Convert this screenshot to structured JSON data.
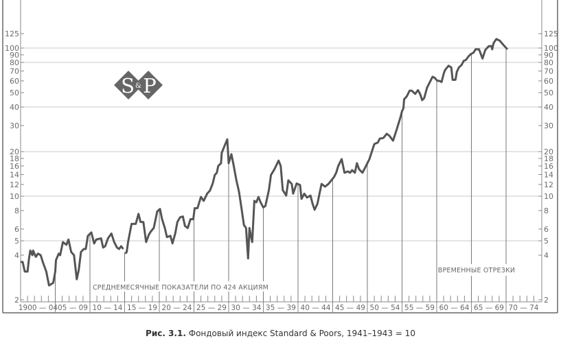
{
  "chart_data": {
    "type": "line",
    "title": "",
    "y_scale": "log",
    "ylim": [
      2,
      150
    ],
    "xlim": [
      1900,
      1975
    ],
    "y_ticks": [
      2,
      4,
      5,
      6,
      8,
      10,
      12,
      14,
      16,
      18,
      20,
      30,
      40,
      50,
      60,
      70,
      80,
      90,
      100,
      125
    ],
    "y_tick_labels": [
      "2",
      "4",
      "5",
      "6",
      "8",
      "10",
      "12",
      "14",
      "16",
      "18",
      "20",
      "30",
      "40",
      "50",
      "60",
      "70",
      "80",
      "90",
      "100",
      "125"
    ],
    "gridlines": [
      5,
      10,
      20,
      40,
      80,
      100
    ],
    "x_periods": [
      "1900 — 04",
      "05 — 09",
      "10 — 14",
      "15 — 19",
      "20 — 24",
      "25 — 29",
      "30 — 34",
      "35 — 39",
      "40 — 44",
      "45 — 49",
      "50 — 54",
      "55 — 59",
      "60 — 64",
      "65 — 69",
      "70 — 74"
    ],
    "annotations": [
      "СРЕДНЕМЕСЯЧНЫЕ ПОКАЗАТЕЛИ ПО 424 АКЦИЯМ",
      "ВРЕМЕННЫЕ ОТРЕЗКИ"
    ],
    "line_color": "#555555",
    "series": [
      {
        "points": [
          [
            1900.0,
            3.6
          ],
          [
            1900.3,
            3.6
          ],
          [
            1900.6,
            3.1
          ],
          [
            1901.0,
            3.1
          ],
          [
            1901.2,
            3.75
          ],
          [
            1901.4,
            4.3
          ],
          [
            1901.7,
            4.0
          ],
          [
            1901.8,
            4.3
          ],
          [
            1902.2,
            3.9
          ],
          [
            1902.5,
            4.1
          ],
          [
            1902.9,
            4.0
          ],
          [
            1903.2,
            3.6
          ],
          [
            1903.7,
            3.1
          ],
          [
            1904.1,
            2.5
          ],
          [
            1904.7,
            2.6
          ],
          [
            1905.0,
            3.1
          ],
          [
            1905.1,
            3.7
          ],
          [
            1905.5,
            4.1
          ],
          [
            1905.7,
            4.0
          ],
          [
            1906.1,
            4.9
          ],
          [
            1906.6,
            4.7
          ],
          [
            1906.9,
            5.1
          ],
          [
            1907.3,
            4.2
          ],
          [
            1907.7,
            4.0
          ],
          [
            1908.1,
            2.75
          ],
          [
            1908.4,
            3.2
          ],
          [
            1908.7,
            4.2
          ],
          [
            1909.1,
            4.4
          ],
          [
            1909.4,
            4.4
          ],
          [
            1909.7,
            5.4
          ],
          [
            1910.2,
            5.7
          ],
          [
            1910.6,
            4.8
          ],
          [
            1910.9,
            5.1
          ],
          [
            1911.6,
            5.2
          ],
          [
            1911.9,
            4.5
          ],
          [
            1912.2,
            4.6
          ],
          [
            1912.6,
            5.2
          ],
          [
            1913.1,
            5.6
          ],
          [
            1913.5,
            4.9
          ],
          [
            1913.9,
            4.5
          ],
          [
            1914.2,
            4.4
          ],
          [
            1914.5,
            4.6
          ],
          [
            1914.8,
            4.4
          ],
          null,
          [
            1915.1,
            4.1
          ],
          [
            1915.3,
            4.2
          ],
          [
            1915.5,
            4.9
          ],
          [
            1916.0,
            6.5
          ],
          [
            1916.6,
            6.5
          ],
          [
            1917.0,
            7.6
          ],
          [
            1917.3,
            6.7
          ],
          [
            1917.7,
            6.7
          ],
          [
            1918.1,
            4.9
          ],
          [
            1918.5,
            5.5
          ],
          [
            1918.8,
            5.8
          ],
          [
            1919.2,
            6.1
          ],
          [
            1919.7,
            7.9
          ],
          [
            1920.1,
            8.2
          ],
          [
            1920.4,
            7.0
          ],
          [
            1920.8,
            6.1
          ],
          [
            1921.1,
            5.3
          ],
          [
            1921.6,
            5.4
          ],
          [
            1921.9,
            4.8
          ],
          [
            1922.3,
            5.6
          ],
          [
            1922.6,
            6.7
          ],
          [
            1923.0,
            7.2
          ],
          [
            1923.4,
            7.3
          ],
          [
            1923.7,
            6.3
          ],
          [
            1924.1,
            6.1
          ],
          [
            1924.5,
            7.0
          ],
          [
            1924.9,
            7.0
          ],
          [
            1925.1,
            8.3
          ],
          [
            1925.5,
            8.3
          ],
          [
            1926.0,
            9.9
          ],
          [
            1926.4,
            9.3
          ],
          [
            1926.9,
            10.4
          ],
          [
            1927.3,
            10.9
          ],
          [
            1927.7,
            12.2
          ],
          [
            1928.0,
            13.9
          ],
          [
            1928.3,
            14.4
          ],
          [
            1928.5,
            16.0
          ],
          [
            1928.9,
            16.7
          ],
          [
            1929.0,
            19.6
          ],
          [
            1929.4,
            21.8
          ],
          [
            1929.8,
            24.2
          ],
          [
            1930.0,
            16.7
          ],
          [
            1930.4,
            19.2
          ],
          [
            1930.7,
            16.3
          ],
          [
            1931.1,
            12.9
          ],
          [
            1931.5,
            10.7
          ],
          [
            1931.9,
            8.0
          ],
          [
            1932.2,
            6.4
          ],
          [
            1932.5,
            6.1
          ],
          [
            1932.8,
            3.8
          ],
          [
            1933.0,
            6.1
          ],
          [
            1933.2,
            5.4
          ],
          [
            1933.4,
            4.9
          ],
          [
            1933.7,
            9.3
          ],
          [
            1934.0,
            9.1
          ],
          [
            1934.3,
            9.9
          ],
          [
            1934.6,
            9.1
          ],
          [
            1935.0,
            8.4
          ],
          [
            1935.3,
            8.6
          ],
          [
            1935.8,
            11.0
          ],
          [
            1936.1,
            13.9
          ],
          [
            1936.6,
            15.2
          ],
          [
            1937.2,
            17.4
          ],
          [
            1937.5,
            16.0
          ],
          [
            1937.8,
            11.0
          ],
          [
            1938.3,
            10.1
          ],
          [
            1938.6,
            12.8
          ],
          [
            1939.1,
            12.1
          ],
          [
            1939.3,
            10.4
          ],
          [
            1939.8,
            12.2
          ],
          [
            1940.3,
            11.9
          ],
          [
            1940.5,
            9.6
          ],
          [
            1940.9,
            10.4
          ],
          [
            1941.3,
            9.8
          ],
          [
            1941.8,
            10.1
          ],
          [
            1942.1,
            8.9
          ],
          [
            1942.4,
            8.1
          ],
          [
            1942.8,
            8.9
          ],
          [
            1943.1,
            10.4
          ],
          [
            1943.4,
            12.1
          ],
          [
            1943.9,
            11.6
          ],
          [
            1944.4,
            12.1
          ],
          [
            1944.8,
            12.8
          ],
          [
            1945.2,
            13.5
          ],
          [
            1945.5,
            14.4
          ],
          [
            1945.8,
            16.0
          ],
          [
            1946.3,
            17.8
          ],
          [
            1946.7,
            14.4
          ],
          [
            1947.2,
            14.7
          ],
          [
            1947.5,
            14.4
          ],
          [
            1947.8,
            15.0
          ],
          [
            1948.2,
            14.4
          ],
          [
            1948.5,
            16.7
          ],
          [
            1948.8,
            15.2
          ],
          [
            1949.3,
            14.4
          ],
          [
            1949.8,
            16.0
          ],
          [
            1950.3,
            17.8
          ],
          [
            1951.0,
            22.5
          ],
          [
            1951.5,
            23.0
          ],
          [
            1951.8,
            24.5
          ],
          [
            1952.3,
            24.7
          ],
          [
            1952.8,
            26.4
          ],
          [
            1953.2,
            25.5
          ],
          [
            1953.7,
            23.7
          ],
          [
            1954.2,
            27.9
          ],
          [
            1954.8,
            34.5
          ],
          [
            1955.0,
            37.5
          ],
          [
            1955.2,
            39.2
          ],
          [
            1955.3,
            45.0
          ],
          [
            1955.7,
            47.4
          ],
          [
            1956.1,
            51.6
          ],
          [
            1956.4,
            51.6
          ],
          [
            1956.9,
            49.0
          ],
          [
            1957.3,
            52.0
          ],
          [
            1957.6,
            49.0
          ],
          [
            1957.9,
            44.5
          ],
          [
            1958.2,
            46.0
          ],
          [
            1958.6,
            54.0
          ],
          [
            1959.1,
            60.0
          ],
          [
            1959.4,
            64.0
          ],
          [
            1959.7,
            63.0
          ],
          [
            1960.1,
            60.0
          ],
          [
            1960.4,
            60.0
          ],
          [
            1960.7,
            59.0
          ],
          [
            1961.0,
            67.0
          ],
          [
            1961.2,
            71.0
          ],
          [
            1961.7,
            76.0
          ],
          [
            1962.1,
            74.0
          ],
          [
            1962.3,
            61.0
          ],
          [
            1962.7,
            61.0
          ],
          [
            1962.9,
            69.0
          ],
          [
            1963.2,
            74.0
          ],
          [
            1963.6,
            77.0
          ],
          [
            1963.9,
            82.0
          ],
          [
            1964.2,
            83.0
          ],
          [
            1964.6,
            88.0
          ],
          [
            1964.9,
            91.0
          ],
          [
            1965.3,
            93.0
          ],
          [
            1965.6,
            98.0
          ],
          [
            1966.1,
            98.0
          ],
          [
            1966.6,
            85.0
          ],
          [
            1967.0,
            97.0
          ],
          [
            1967.5,
            103.0
          ],
          [
            1967.9,
            103.0
          ],
          [
            1968.0,
            98.0
          ],
          [
            1968.2,
            108.0
          ],
          [
            1968.6,
            115.0
          ],
          [
            1969.1,
            112.0
          ],
          [
            1969.6,
            105.0
          ],
          [
            1970.2,
            98.0
          ]
        ]
      }
    ]
  },
  "logo": {
    "text": "S&P",
    "left": "S",
    "amp": "&",
    "right": "P",
    "color": "#666666"
  },
  "caption": {
    "label": "Рис. 3.1.",
    "text": "Фондовый индекс Standard & Poors, 1941–1943 = 10"
  }
}
